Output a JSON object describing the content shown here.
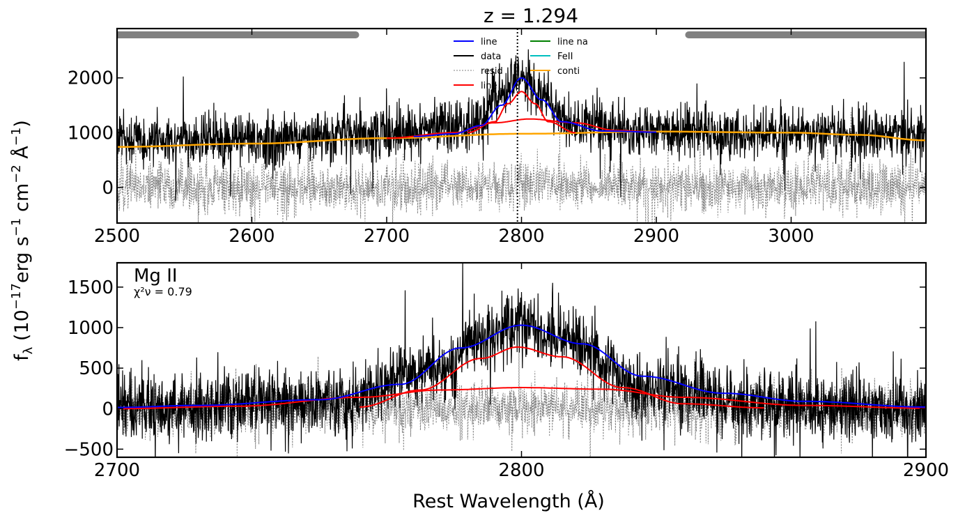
{
  "figure": {
    "title": "z = 1.294",
    "ylabel_main": "f",
    "ylabel_sub": "λ",
    "ylabel_rest": " (10",
    "ylabel_exp1": "−17",
    "ylabel_mid1": "erg s",
    "ylabel_exp2": "−1",
    "ylabel_mid2": " cm",
    "ylabel_exp3": "−2",
    "ylabel_mid3": " Å",
    "ylabel_exp4": "−1",
    "ylabel_end": ")",
    "xlabel": "Rest Wavelength (Å)"
  },
  "colors": {
    "line_total": "#0000ff",
    "data": "#000000",
    "residual": "#808080",
    "line_broad": "#ff0000",
    "line_narrow": "#008000",
    "feii": "#00bfbf",
    "continuum": "#ffa500",
    "masked": "#808080"
  },
  "chart_data": [
    {
      "type": "line",
      "panel": "top",
      "xlim": [
        2500,
        3100
      ],
      "ylim": [
        -650,
        2900
      ],
      "xticks": [
        2500,
        2600,
        2700,
        2800,
        2900,
        3000
      ],
      "yticks": [
        0,
        1000,
        2000
      ],
      "legend": {
        "placement": "top-center",
        "entries": [
          {
            "label": "line",
            "color": "#0000ff",
            "style": "solid"
          },
          {
            "label": "data",
            "color": "#000000",
            "style": "solid"
          },
          {
            "label": "resid",
            "color": "#808080",
            "style": "dotted"
          },
          {
            "label": "line",
            "color": "#ff0000",
            "style": "solid"
          },
          {
            "label": "line na",
            "color": "#008000",
            "style": "solid"
          },
          {
            "label": "FeII",
            "color": "#00bfbf",
            "style": "solid"
          },
          {
            "label": "conti",
            "color": "#ffa500",
            "style": "solid"
          }
        ]
      },
      "masked_ranges": [
        [
          2500,
          2677
        ],
        [
          2924,
          3100
        ]
      ],
      "marker_line_x": 2797,
      "series": [
        {
          "component": "data",
          "noise_sigma": 230,
          "points": [
            [
              2500,
              900
            ],
            [
              2600,
              880
            ],
            [
              2700,
              1000
            ],
            [
              2760,
              1100
            ],
            [
              2790,
              1800
            ],
            [
              2800,
              2050
            ],
            [
              2810,
              1800
            ],
            [
              2840,
              1150
            ],
            [
              2900,
              1000
            ],
            [
              3000,
              1000
            ],
            [
              3100,
              950
            ]
          ]
        },
        {
          "component": "continuum",
          "points": [
            [
              2500,
              740
            ],
            [
              2600,
              800
            ],
            [
              2700,
              900
            ],
            [
              2800,
              980
            ],
            [
              2900,
              1020
            ],
            [
              3000,
              1000
            ],
            [
              3050,
              960
            ],
            [
              3100,
              860
            ]
          ]
        },
        {
          "component": "line_total",
          "points": [
            [
              2720,
              930
            ],
            [
              2750,
              980
            ],
            [
              2770,
              1130
            ],
            [
              2785,
              1500
            ],
            [
              2800,
              2000
            ],
            [
              2815,
              1600
            ],
            [
              2830,
              1200
            ],
            [
              2860,
              1030
            ],
            [
              2900,
              1010
            ]
          ]
        },
        {
          "component": "broad_1",
          "points": [
            [
              2760,
              1000
            ],
            [
              2780,
              1200
            ],
            [
              2790,
              1530
            ],
            [
              2800,
              1750
            ],
            [
              2810,
              1530
            ],
            [
              2820,
              1200
            ],
            [
              2840,
              1000
            ]
          ]
        },
        {
          "component": "broad_2",
          "points": [
            [
              2700,
              900
            ],
            [
              2750,
              1000
            ],
            [
              2780,
              1180
            ],
            [
              2806,
              1250
            ],
            [
              2840,
              1180
            ],
            [
              2870,
              1040
            ],
            [
              2900,
              1010
            ]
          ]
        },
        {
          "component": "residual",
          "noise_sigma": 220,
          "points": [
            [
              2500,
              0
            ],
            [
              2700,
              0
            ],
            [
              2800,
              50
            ],
            [
              2900,
              0
            ],
            [
              3100,
              0
            ]
          ]
        }
      ]
    },
    {
      "type": "line",
      "panel": "bottom",
      "label": "Mg II",
      "chi2_label": "χ²ν = 0.79",
      "xlim": [
        2700,
        2900
      ],
      "ylim": [
        -600,
        1800
      ],
      "xticks": [
        2700,
        2800,
        2900
      ],
      "yticks": [
        -500,
        0,
        500,
        1000,
        1500
      ],
      "series": [
        {
          "component": "data",
          "noise_sigma": 200,
          "points": [
            [
              2700,
              0
            ],
            [
              2750,
              100
            ],
            [
              2780,
              500
            ],
            [
              2790,
              900
            ],
            [
              2800,
              1050
            ],
            [
              2810,
              900
            ],
            [
              2830,
              300
            ],
            [
              2860,
              50
            ],
            [
              2900,
              0
            ]
          ]
        },
        {
          "component": "line_total",
          "points": [
            [
              2700,
              15
            ],
            [
              2720,
              40
            ],
            [
              2750,
              110
            ],
            [
              2770,
              300
            ],
            [
              2785,
              750
            ],
            [
              2800,
              1030
            ],
            [
              2815,
              800
            ],
            [
              2830,
              400
            ],
            [
              2850,
              190
            ],
            [
              2870,
              90
            ],
            [
              2900,
              20
            ]
          ]
        },
        {
          "component": "broad_1",
          "points": [
            [
              2760,
              20
            ],
            [
              2775,
              230
            ],
            [
              2790,
              620
            ],
            [
              2799,
              760
            ],
            [
              2810,
              640
            ],
            [
              2825,
              260
            ],
            [
              2840,
              60
            ],
            [
              2860,
              10
            ]
          ]
        },
        {
          "component": "broad_2",
          "points": [
            [
              2700,
              0
            ],
            [
              2730,
              30
            ],
            [
              2760,
              140
            ],
            [
              2780,
              230
            ],
            [
              2800,
              260
            ],
            [
              2820,
              240
            ],
            [
              2840,
              140
            ],
            [
              2870,
              40
            ],
            [
              2900,
              5
            ]
          ]
        },
        {
          "component": "residual",
          "noise_sigma": 160,
          "points": [
            [
              2700,
              0
            ],
            [
              2900,
              0
            ]
          ]
        }
      ]
    }
  ]
}
